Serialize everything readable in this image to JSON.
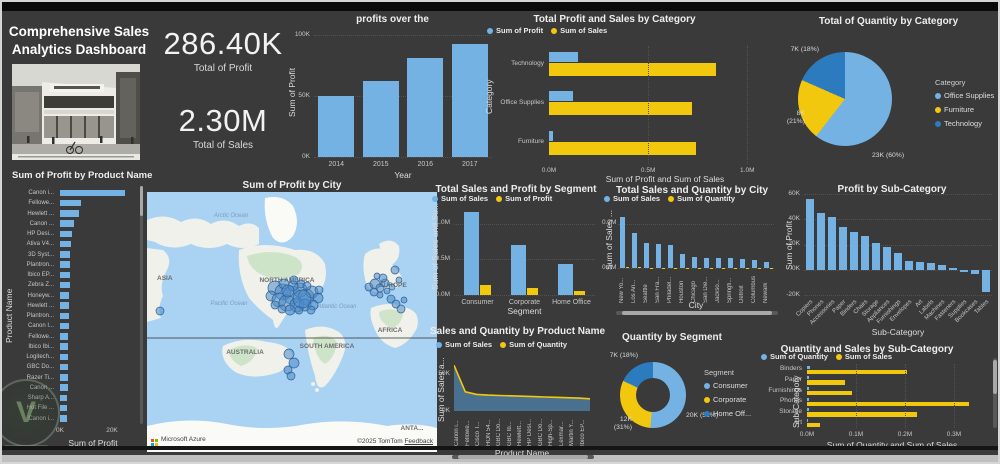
{
  "header": {
    "title": "Comprehensive Sales Analytics Dashboard"
  },
  "kpis": [
    {
      "value": "286.40K",
      "label": "Total of Profit"
    },
    {
      "value": "2.30M",
      "label": "Total  of Sales"
    }
  ],
  "colors": {
    "blue": "#73B2E3",
    "yellow": "#F2C80F",
    "dark_blue": "#2C7BBF",
    "background": "#3A3A3A"
  },
  "chart_data": [
    {
      "id": "profit_by_year",
      "type": "bar",
      "title": "profits over the",
      "xlabel": "Year",
      "ylabel": "Sum of Profit",
      "color": "#73B2E3",
      "categories": [
        "2014",
        "2015",
        "2016",
        "2017"
      ],
      "values": [
        50000,
        62000,
        81000,
        93000
      ],
      "yticks": [
        "100K",
        "50K",
        "0K"
      ],
      "ylim": [
        0,
        100000
      ]
    },
    {
      "id": "profit_sales_by_category",
      "type": "bar-horizontal-grouped",
      "title": "Total Profit and Sales by Category",
      "xlabel": "Sum of Profit and Sum of Sales",
      "ylabel": "Category",
      "categories": [
        "Technology",
        "Office Supplies",
        "Furniture"
      ],
      "series": [
        {
          "name": "Sum of Profit",
          "color": "#73B2E3",
          "values": [
            145000,
            120000,
            18000
          ]
        },
        {
          "name": "Sum of Sales",
          "color": "#F2C80F",
          "values": [
            840000,
            720000,
            740000
          ]
        }
      ],
      "xticks": [
        "0.0M",
        "0.5M",
        "1.0M"
      ],
      "xlim": [
        0,
        1170000
      ]
    },
    {
      "id": "quantity_by_category",
      "type": "pie",
      "title": "Total of Quantity by Category",
      "legend_title": "Category",
      "slices": [
        {
          "name": "Office Supplies",
          "color": "#73B2E3",
          "value": 23000,
          "label": "23K (60%)",
          "pct": 60
        },
        {
          "name": "Furniture",
          "color": "#F2C80F",
          "value": 8000,
          "label": "8K (21%)",
          "pct": 21
        },
        {
          "name": "Technology",
          "color": "#2C7BBF",
          "value": 7000,
          "label": "7K (18%)",
          "pct": 18
        }
      ]
    },
    {
      "id": "profit_by_product",
      "type": "bar-horizontal",
      "title": "Sum of Profit by Product Name",
      "xlabel": "Sum of Profit",
      "ylabel": "Product Name",
      "color": "#73B2E3",
      "categories": [
        "Canon i...",
        "Fellowe...",
        "Hewlett ...",
        "Canon ...",
        "HP Desi...",
        "Ativa V4...",
        "3D Syst...",
        "Plantron...",
        "Ibico EP...",
        "Zebra Z...",
        "Honeyw...",
        "Hewlett ...",
        "Plantron...",
        "Canon I...",
        "Fellowe...",
        "Ibico Ibi...",
        "Logitech...",
        "GBC Do...",
        "Razer Ti...",
        "Canon ...",
        "Sharp A...",
        "Hot File ...",
        "Canon i..."
      ],
      "values": [
        25000,
        8000,
        7200,
        5200,
        4600,
        4200,
        4000,
        3900,
        3800,
        3700,
        3600,
        3500,
        3400,
        3300,
        3200,
        3100,
        3050,
        3000,
        2950,
        2900,
        2850,
        2800,
        2750
      ],
      "xticks": [
        "0K",
        "20K"
      ],
      "xlim": [
        0,
        30000
      ]
    },
    {
      "id": "profit_by_city",
      "type": "map",
      "title": "Sum of Profit by City",
      "labels": {
        "arctic_ocean": "Arctic Ocean",
        "asia": "ASIA",
        "north_america": "NORTH AMERICA",
        "pacific_ocean": "Pacific Ocean",
        "atlantic_ocean": "Atlantic Ocean",
        "europe": "EUROPE",
        "africa": "AFRICA",
        "australia": "AUSTRALIA",
        "south_america": "SOUTH AMERICA",
        "antarctica": "ANTA...",
        "attribution_brand": "Microsoft Azure",
        "attribution_copyright": "©2025 TomTom",
        "attribution_feedback": "Feedback"
      },
      "bubble_regions": [
        "United States",
        "Europe",
        "Australia"
      ]
    },
    {
      "id": "sales_profit_by_segment",
      "type": "bar-grouped",
      "title": "Total Sales and Profit by Segment",
      "xlabel": "Segment",
      "ylabel": "Sum of Sales and Su...",
      "categories": [
        "Consumer",
        "Corporate",
        "Home Office"
      ],
      "series": [
        {
          "name": "Sum of Sales",
          "color": "#73B2E3",
          "values": [
            1160000,
            700000,
            430000
          ]
        },
        {
          "name": "Sum of Profit",
          "color": "#F2C80F",
          "values": [
            134000,
            92000,
            60000
          ]
        }
      ],
      "yticks": [
        "1.0M",
        "0.5M",
        "0.0M"
      ],
      "ylim": [
        0,
        1250000
      ]
    },
    {
      "id": "sales_qty_by_city",
      "type": "bar-grouped",
      "title": "Total Sales and Quantity by City",
      "xlabel": "City",
      "ylabel": "Sum of Sales ...",
      "categories": [
        "New Yo...",
        "Los An...",
        "Seattle",
        "San Fra...",
        "Philadel...",
        "Houston",
        "Chicago",
        "San Die...",
        "Jackso...",
        "Springfi...",
        "Detroit",
        "Columbus",
        "Newark"
      ],
      "series": [
        {
          "name": "Sum of Sales",
          "color": "#73B2E3",
          "values": [
            230000,
            160000,
            115000,
            110000,
            105000,
            62000,
            48000,
            46000,
            44000,
            43000,
            42000,
            38000,
            27000
          ]
        },
        {
          "name": "Sum of Quantity",
          "color": "#F2C80F",
          "values": [
            4000,
            3000,
            2000,
            2000,
            2000,
            1500,
            1200,
            1200,
            1100,
            1100,
            1000,
            1000,
            800
          ]
        }
      ],
      "yticks": [
        "0.2M",
        "0.0M"
      ],
      "ylim": [
        0,
        280000
      ]
    },
    {
      "id": "profit_by_subcategory",
      "type": "bar",
      "title": "Profit by Sub-Category",
      "xlabel": "Sub-Category",
      "ylabel": "Sum of Profit",
      "color": "#73B2E3",
      "categories": [
        "Copiers",
        "Phones",
        "Accessories",
        "Paper",
        "Binders",
        "Chairs",
        "Storage",
        "Appliances",
        "Furnishings",
        "Envelopes",
        "Art",
        "Labels",
        "Machines",
        "Fasteners",
        "Supplies",
        "Bookcases",
        "Tables"
      ],
      "values": [
        56000,
        45000,
        42000,
        34000,
        30000,
        27000,
        21000,
        18000,
        13000,
        7000,
        6500,
        5500,
        3400,
        1000,
        -1500,
        -3500,
        -17700
      ],
      "yticks": [
        "60K",
        "40K",
        "20K",
        "0K",
        "-20K"
      ],
      "ylim": [
        -20000,
        60000
      ]
    },
    {
      "id": "sales_qty_by_product",
      "type": "area",
      "title": "Sales and Quantity by Product Name",
      "xlabel": "Product Name",
      "ylabel": "Sum of Sales a...",
      "categories": [
        "Canon i...",
        "Fellowe...",
        "Cisco T...",
        "HON 54...",
        "GBC Do...",
        "GBC Ib...",
        "Hewlett...",
        "HP Desi...",
        "GBC Do...",
        "High-Sp...",
        "Lexmar...",
        "Martin Y...",
        "Ibico EP..."
      ],
      "series": [
        {
          "name": "Sum of Sales",
          "color": "#73B2E3",
          "values": [
            62000,
            26000,
            22500,
            21500,
            21000,
            20500,
            20000,
            19500,
            19000,
            18500,
            18000,
            17500,
            16500
          ]
        },
        {
          "name": "Sum of Quantity",
          "color": "#F2C80F",
          "values": [
            62000,
            26000,
            22500,
            21500,
            21000,
            20500,
            20000,
            19500,
            19000,
            18500,
            18000,
            17500,
            16500
          ]
        }
      ],
      "yticks": [
        "50K",
        "0K"
      ],
      "ylim": [
        0,
        69000
      ]
    },
    {
      "id": "quantity_by_segment",
      "type": "donut",
      "title": "Quantity by Segment",
      "legend_title": "Segment",
      "slices": [
        {
          "name": "Consumer",
          "color": "#73B2E3",
          "value": 20000,
          "label": "20K (52%)",
          "pct": 52
        },
        {
          "name": "Corporate",
          "color": "#F2C80F",
          "value": 12000,
          "label": "12K (31%)",
          "pct": 31
        },
        {
          "name": "Home Off...",
          "color": "#2C7BBF",
          "value": 7000,
          "label": "7K (18%)",
          "pct": 18
        }
      ]
    },
    {
      "id": "qty_sales_by_subcategory",
      "type": "bar-horizontal-grouped",
      "title": "Quantity and Sales by Sub-Category",
      "xlabel": "Sum of Quantity and Sum of Sales",
      "ylabel": "Sub-Category",
      "categories": [
        "Binders",
        "Paper",
        "Furnishings",
        "Phones",
        "Storage",
        "Art"
      ],
      "series": [
        {
          "name": "Sum of Quantity",
          "color": "#73B2E3",
          "values": [
            6000,
            5000,
            4000,
            3500,
            3200,
            3000
          ]
        },
        {
          "name": "Sum of Sales",
          "color": "#F2C80F",
          "values": [
            205000,
            78000,
            92000,
            330000,
            224000,
            27000
          ]
        }
      ],
      "xticks": [
        "0.0M",
        "0.1M",
        "0.2M",
        "0.3M"
      ],
      "xlim": [
        0,
        347000
      ]
    }
  ]
}
